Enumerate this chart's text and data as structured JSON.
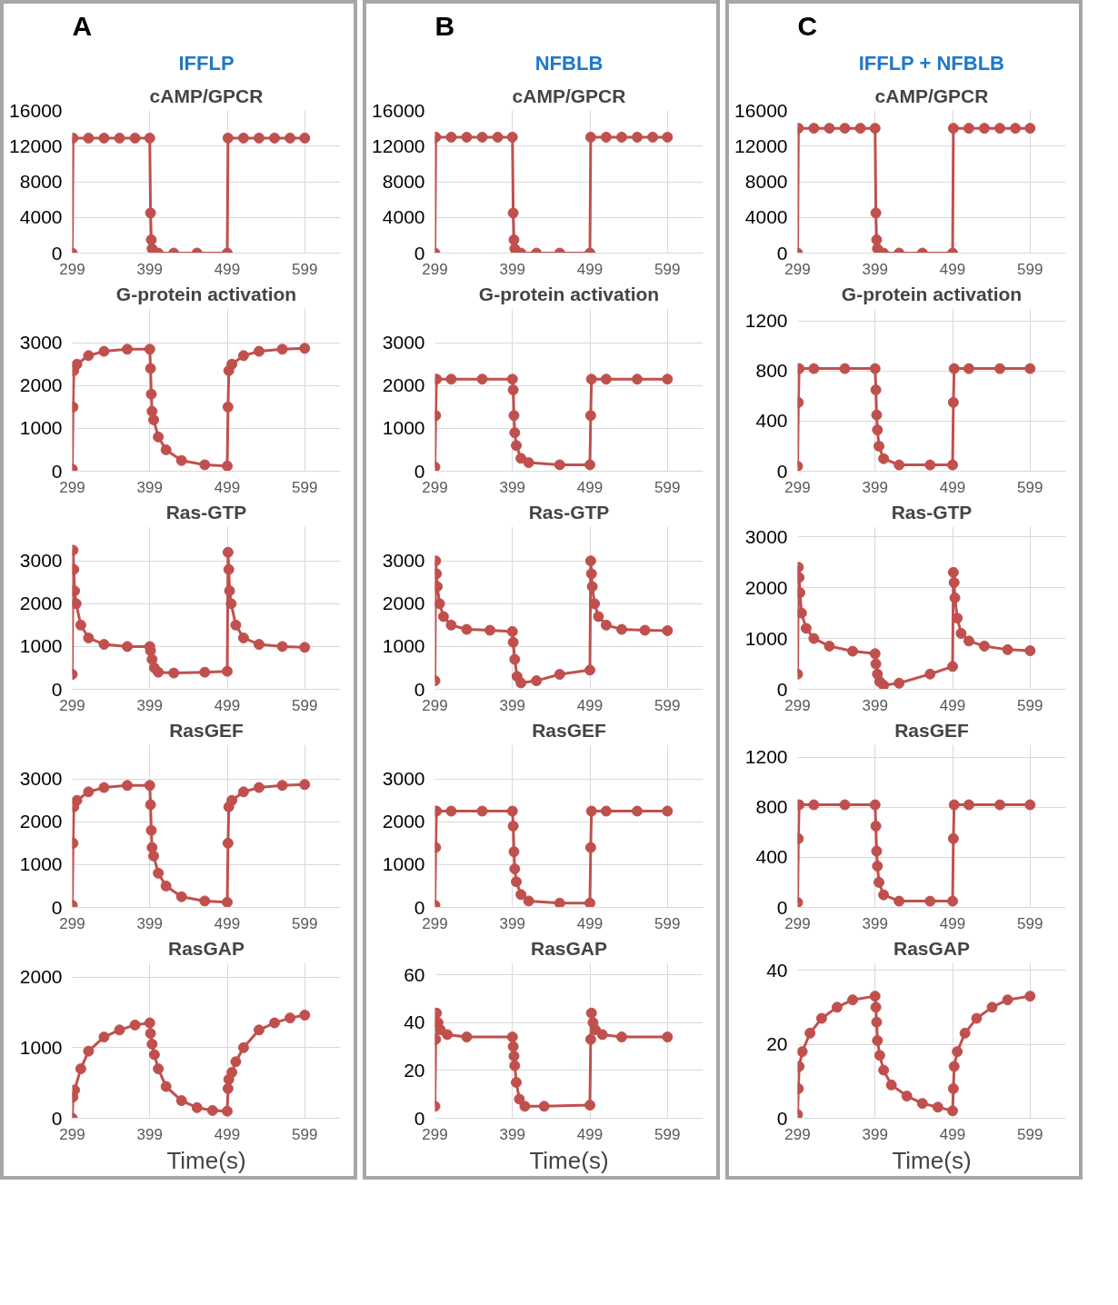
{
  "chart_data": [
    {
      "type": "line",
      "title": "cAMP/GPCR",
      "annotations": [
        "A",
        "IFFLP"
      ],
      "xlim": [
        299,
        645
      ],
      "xticks": [
        299,
        399,
        499,
        599
      ],
      "ylim": [
        0,
        16000
      ],
      "yticks": [
        0,
        4000,
        8000,
        12000,
        16000
      ],
      "grid": true,
      "marker": "circle",
      "line_style": "solid",
      "x": [
        299,
        300,
        320,
        340,
        360,
        380,
        399,
        400,
        401,
        402,
        410,
        430,
        460,
        499,
        500,
        520,
        540,
        560,
        580,
        599
      ],
      "series": [
        {
          "color": "#c0504d",
          "values": [
            0,
            12900,
            12900,
            12900,
            12900,
            12900,
            12900,
            4500,
            1500,
            500,
            0,
            0,
            0,
            0,
            12900,
            12900,
            12900,
            12900,
            12900,
            12900
          ]
        }
      ]
    },
    {
      "type": "line",
      "title": "G-protein activation",
      "xlim": [
        299,
        645
      ],
      "xticks": [
        299,
        399,
        499,
        599
      ],
      "ylim": [
        0,
        3800
      ],
      "yticks": [
        0,
        1000,
        2000,
        3000
      ],
      "grid": true,
      "marker": "circle",
      "line_style": "solid",
      "x": [
        299,
        300,
        301,
        305,
        320,
        340,
        370,
        399,
        400,
        401,
        402,
        404,
        410,
        420,
        440,
        470,
        499,
        500,
        501,
        505,
        520,
        540,
        570,
        599
      ],
      "series": [
        {
          "color": "#c0504d",
          "values": [
            50,
            1500,
            2350,
            2500,
            2700,
            2800,
            2850,
            2850,
            2400,
            1800,
            1400,
            1200,
            800,
            500,
            250,
            150,
            120,
            1500,
            2350,
            2500,
            2700,
            2800,
            2850,
            2870
          ]
        }
      ]
    },
    {
      "type": "line",
      "title": "Ras-GTP",
      "xlim": [
        299,
        645
      ],
      "xticks": [
        299,
        399,
        499,
        599
      ],
      "ylim": [
        0,
        3800
      ],
      "yticks": [
        0,
        1000,
        2000,
        3000
      ],
      "grid": true,
      "marker": "circle",
      "line_style": "solid",
      "x": [
        299,
        300,
        301,
        302,
        304,
        310,
        320,
        340,
        370,
        399,
        400,
        402,
        405,
        410,
        430,
        470,
        499,
        500,
        501,
        502,
        504,
        510,
        520,
        540,
        570,
        599
      ],
      "series": [
        {
          "color": "#c0504d",
          "values": [
            350,
            3250,
            2800,
            2300,
            2000,
            1500,
            1200,
            1050,
            1000,
            1000,
            900,
            700,
            500,
            400,
            380,
            400,
            420,
            3200,
            2800,
            2300,
            2000,
            1500,
            1200,
            1050,
            1000,
            980
          ]
        }
      ]
    },
    {
      "type": "line",
      "title": "RasGEF",
      "xlim": [
        299,
        645
      ],
      "xticks": [
        299,
        399,
        499,
        599
      ],
      "ylim": [
        0,
        3800
      ],
      "yticks": [
        0,
        1000,
        2000,
        3000
      ],
      "grid": true,
      "marker": "circle",
      "line_style": "solid",
      "x": [
        299,
        300,
        301,
        305,
        320,
        340,
        370,
        399,
        400,
        401,
        402,
        404,
        410,
        420,
        440,
        470,
        499,
        500,
        501,
        505,
        520,
        540,
        570,
        599
      ],
      "series": [
        {
          "color": "#c0504d",
          "values": [
            50,
            1500,
            2350,
            2500,
            2700,
            2800,
            2850,
            2850,
            2400,
            1800,
            1400,
            1200,
            800,
            500,
            250,
            150,
            120,
            1500,
            2350,
            2500,
            2700,
            2800,
            2850,
            2870
          ]
        }
      ]
    },
    {
      "type": "line",
      "title": "RasGAP",
      "xlabel": "Time(s)",
      "xlim": [
        299,
        645
      ],
      "xticks": [
        299,
        399,
        499,
        599
      ],
      "ylim": [
        0,
        2200
      ],
      "yticks": [
        0,
        1000,
        2000
      ],
      "grid": true,
      "marker": "circle",
      "line_style": "solid",
      "x": [
        299,
        300,
        302,
        310,
        320,
        340,
        360,
        380,
        399,
        400,
        402,
        405,
        410,
        420,
        440,
        460,
        480,
        499,
        500,
        501,
        505,
        510,
        520,
        540,
        560,
        580,
        599
      ],
      "series": [
        {
          "color": "#c0504d",
          "values": [
            0,
            300,
            400,
            700,
            950,
            1150,
            1250,
            1320,
            1350,
            1200,
            1050,
            900,
            700,
            450,
            250,
            150,
            110,
            100,
            420,
            550,
            650,
            800,
            1000,
            1250,
            1350,
            1420,
            1460
          ]
        }
      ]
    },
    {
      "type": "line",
      "title": "cAMP/GPCR",
      "annotations": [
        "B",
        "NFBLB"
      ],
      "xlim": [
        299,
        645
      ],
      "xticks": [
        299,
        399,
        499,
        599
      ],
      "ylim": [
        0,
        16000
      ],
      "yticks": [
        0,
        4000,
        8000,
        12000,
        16000
      ],
      "grid": true,
      "marker": "circle",
      "line_style": "solid",
      "x": [
        299,
        300,
        320,
        340,
        360,
        380,
        399,
        400,
        401,
        402,
        410,
        430,
        460,
        499,
        500,
        520,
        540,
        560,
        580,
        599
      ],
      "series": [
        {
          "color": "#c0504d",
          "values": [
            0,
            13000,
            13000,
            13000,
            13000,
            13000,
            13000,
            4500,
            1500,
            500,
            0,
            0,
            0,
            0,
            13000,
            13000,
            13000,
            13000,
            13000,
            13000
          ]
        }
      ]
    },
    {
      "type": "line",
      "title": "G-protein activation",
      "xlim": [
        299,
        645
      ],
      "xticks": [
        299,
        399,
        499,
        599
      ],
      "ylim": [
        0,
        3800
      ],
      "yticks": [
        0,
        1000,
        2000,
        3000
      ],
      "grid": true,
      "marker": "circle",
      "line_style": "solid",
      "x": [
        299,
        300,
        301,
        320,
        360,
        399,
        400,
        401,
        402,
        404,
        410,
        420,
        460,
        499,
        500,
        501,
        520,
        560,
        599
      ],
      "series": [
        {
          "color": "#c0504d",
          "values": [
            100,
            1300,
            2150,
            2150,
            2150,
            2150,
            1900,
            1300,
            900,
            600,
            300,
            200,
            150,
            150,
            1300,
            2150,
            2150,
            2150,
            2150
          ]
        }
      ]
    },
    {
      "type": "line",
      "title": "Ras-GTP",
      "xlim": [
        299,
        645
      ],
      "xticks": [
        299,
        399,
        499,
        599
      ],
      "ylim": [
        0,
        3800
      ],
      "yticks": [
        0,
        1000,
        2000,
        3000
      ],
      "grid": true,
      "marker": "circle",
      "line_style": "solid",
      "x": [
        299,
        300,
        301,
        302,
        305,
        310,
        320,
        340,
        370,
        399,
        400,
        402,
        405,
        410,
        430,
        460,
        499,
        500,
        501,
        502,
        505,
        510,
        520,
        540,
        570,
        599
      ],
      "series": [
        {
          "color": "#c0504d",
          "values": [
            200,
            3000,
            2700,
            2400,
            2000,
            1700,
            1500,
            1400,
            1380,
            1350,
            1100,
            700,
            300,
            150,
            200,
            350,
            450,
            3000,
            2700,
            2400,
            2000,
            1700,
            1500,
            1400,
            1380,
            1370
          ]
        }
      ]
    },
    {
      "type": "line",
      "title": "RasGEF",
      "xlim": [
        299,
        645
      ],
      "xticks": [
        299,
        399,
        499,
        599
      ],
      "ylim": [
        0,
        3800
      ],
      "yticks": [
        0,
        1000,
        2000,
        3000
      ],
      "grid": true,
      "marker": "circle",
      "line_style": "solid",
      "x": [
        299,
        300,
        301,
        320,
        360,
        399,
        400,
        401,
        402,
        404,
        410,
        420,
        460,
        499,
        500,
        501,
        520,
        560,
        599
      ],
      "series": [
        {
          "color": "#c0504d",
          "values": [
            50,
            1400,
            2250,
            2250,
            2250,
            2250,
            1900,
            1300,
            900,
            600,
            300,
            150,
            100,
            100,
            1400,
            2250,
            2250,
            2250,
            2250
          ]
        }
      ]
    },
    {
      "type": "line",
      "title": "RasGAP",
      "xlabel": "Time(s)",
      "xlim": [
        299,
        645
      ],
      "xticks": [
        299,
        399,
        499,
        599
      ],
      "ylim": [
        0,
        65
      ],
      "yticks": [
        0,
        20,
        40,
        60
      ],
      "grid": true,
      "marker": "circle",
      "line_style": "solid",
      "x": [
        299,
        300,
        301,
        303,
        306,
        315,
        340,
        399,
        400,
        401,
        402,
        404,
        408,
        415,
        440,
        499,
        500,
        501,
        503,
        506,
        515,
        540,
        599
      ],
      "series": [
        {
          "color": "#c0504d",
          "values": [
            5,
            33,
            44,
            40,
            37,
            35,
            34,
            34,
            30,
            26,
            22,
            15,
            8,
            5,
            5,
            5.5,
            33,
            44,
            40,
            37,
            35,
            34,
            34
          ]
        }
      ]
    },
    {
      "type": "line",
      "title": "cAMP/GPCR",
      "annotations": [
        "C",
        "IFFLP + NFBLB"
      ],
      "xlim": [
        299,
        645
      ],
      "xticks": [
        299,
        399,
        499,
        599
      ],
      "ylim": [
        0,
        16000
      ],
      "yticks": [
        0,
        4000,
        8000,
        12000,
        16000
      ],
      "grid": true,
      "marker": "circle",
      "line_style": "solid",
      "x": [
        299,
        300,
        320,
        340,
        360,
        380,
        399,
        400,
        401,
        402,
        410,
        430,
        460,
        499,
        500,
        520,
        540,
        560,
        580,
        599
      ],
      "series": [
        {
          "color": "#c0504d",
          "values": [
            0,
            14000,
            14000,
            14000,
            14000,
            14000,
            14000,
            4500,
            1500,
            500,
            0,
            0,
            0,
            0,
            14000,
            14000,
            14000,
            14000,
            14000,
            14000
          ]
        }
      ]
    },
    {
      "type": "line",
      "title": "G-protein activation",
      "xlim": [
        299,
        645
      ],
      "xticks": [
        299,
        399,
        499,
        599
      ],
      "ylim": [
        0,
        1300
      ],
      "yticks": [
        0,
        400,
        800,
        1200
      ],
      "grid": true,
      "marker": "circle",
      "line_style": "solid",
      "x": [
        299,
        300,
        301,
        320,
        360,
        399,
        400,
        401,
        402,
        404,
        410,
        430,
        470,
        499,
        500,
        501,
        520,
        560,
        599
      ],
      "series": [
        {
          "color": "#c0504d",
          "values": [
            40,
            550,
            820,
            820,
            820,
            820,
            650,
            450,
            330,
            200,
            100,
            50,
            50,
            50,
            550,
            820,
            820,
            820,
            820
          ]
        }
      ]
    },
    {
      "type": "line",
      "title": "Ras-GTP",
      "xlim": [
        299,
        645
      ],
      "xticks": [
        299,
        399,
        499,
        599
      ],
      "ylim": [
        0,
        3200
      ],
      "yticks": [
        0,
        1000,
        2000,
        3000
      ],
      "grid": true,
      "marker": "circle",
      "line_style": "solid",
      "x": [
        299,
        300,
        301,
        302,
        304,
        310,
        320,
        340,
        370,
        399,
        400,
        402,
        405,
        410,
        430,
        470,
        499,
        500,
        501,
        502,
        505,
        510,
        520,
        540,
        570,
        599
      ],
      "series": [
        {
          "color": "#c0504d",
          "values": [
            300,
            2400,
            2200,
            1900,
            1500,
            1200,
            1000,
            850,
            750,
            700,
            500,
            300,
            150,
            80,
            120,
            300,
            450,
            2300,
            2100,
            1800,
            1400,
            1100,
            950,
            850,
            780,
            760
          ]
        }
      ]
    },
    {
      "type": "line",
      "title": "RasGEF",
      "xlim": [
        299,
        645
      ],
      "xticks": [
        299,
        399,
        499,
        599
      ],
      "ylim": [
        0,
        1300
      ],
      "yticks": [
        0,
        400,
        800,
        1200
      ],
      "grid": true,
      "marker": "circle",
      "line_style": "solid",
      "x": [
        299,
        300,
        301,
        320,
        360,
        399,
        400,
        401,
        402,
        404,
        410,
        430,
        470,
        499,
        500,
        501,
        520,
        560,
        599
      ],
      "series": [
        {
          "color": "#c0504d",
          "values": [
            40,
            550,
            820,
            820,
            820,
            820,
            650,
            450,
            330,
            200,
            100,
            50,
            50,
            50,
            550,
            820,
            820,
            820,
            820
          ]
        }
      ]
    },
    {
      "type": "line",
      "title": "RasGAP",
      "xlabel": "Time(s)",
      "xlim": [
        299,
        645
      ],
      "xticks": [
        299,
        399,
        499,
        599
      ],
      "ylim": [
        0,
        42
      ],
      "yticks": [
        0,
        20,
        40
      ],
      "grid": true,
      "marker": "circle",
      "line_style": "solid",
      "x": [
        299,
        300,
        301,
        305,
        315,
        330,
        350,
        370,
        399,
        400,
        401,
        402,
        405,
        410,
        420,
        440,
        460,
        480,
        499,
        500,
        501,
        505,
        515,
        530,
        550,
        570,
        599
      ],
      "series": [
        {
          "color": "#c0504d",
          "values": [
            1,
            8,
            14,
            18,
            23,
            27,
            30,
            32,
            33,
            30,
            26,
            21,
            17,
            13,
            9,
            6,
            4,
            3,
            2,
            8,
            14,
            18,
            23,
            27,
            30,
            32,
            33
          ]
        }
      ]
    }
  ]
}
